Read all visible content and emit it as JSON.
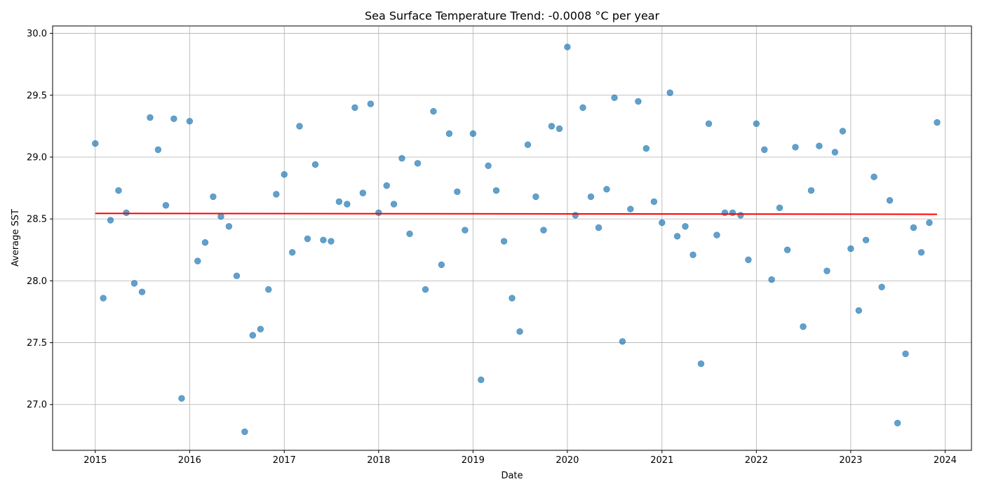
{
  "chart_data": {
    "type": "scatter",
    "title": "Sea Surface Temperature Trend: -0.0008 °C per year",
    "xlabel": "Date",
    "ylabel": "Average SST",
    "x_ticks": [
      "2015",
      "2016",
      "2017",
      "2018",
      "2019",
      "2020",
      "2021",
      "2022",
      "2023",
      "2024"
    ],
    "y_ticks": [
      "27.0",
      "27.5",
      "28.0",
      "28.5",
      "29.0",
      "29.5",
      "30.0"
    ],
    "xlim": [
      "2014-07-20",
      "2024-04-12"
    ],
    "ylim": [
      26.63,
      30.06
    ],
    "grid": true,
    "point_color": "#1f77b4",
    "trend_color": "#ff0000",
    "series": [
      {
        "values": [
          [
            "2015-01",
            29.11
          ],
          [
            "2015-02",
            27.86
          ],
          [
            "2015-03",
            28.49
          ],
          [
            "2015-04",
            28.73
          ],
          [
            "2015-05",
            28.55
          ],
          [
            "2015-06",
            27.98
          ],
          [
            "2015-07",
            27.91
          ],
          [
            "2015-08",
            29.32
          ],
          [
            "2015-09",
            29.06
          ],
          [
            "2015-10",
            28.61
          ],
          [
            "2015-11",
            29.31
          ],
          [
            "2015-12",
            27.05
          ],
          [
            "2016-01",
            29.29
          ],
          [
            "2016-02",
            28.16
          ],
          [
            "2016-03",
            28.31
          ],
          [
            "2016-04",
            28.68
          ],
          [
            "2016-05",
            28.52
          ],
          [
            "2016-06",
            28.44
          ],
          [
            "2016-07",
            28.04
          ],
          [
            "2016-08",
            26.78
          ],
          [
            "2016-09",
            27.56
          ],
          [
            "2016-10",
            27.61
          ],
          [
            "2016-11",
            27.93
          ],
          [
            "2016-12",
            28.7
          ],
          [
            "2017-01",
            28.86
          ],
          [
            "2017-02",
            28.23
          ],
          [
            "2017-03",
            29.25
          ],
          [
            "2017-04",
            28.34
          ],
          [
            "2017-05",
            28.94
          ],
          [
            "2017-06",
            28.33
          ],
          [
            "2017-07",
            28.32
          ],
          [
            "2017-08",
            28.64
          ],
          [
            "2017-09",
            28.62
          ],
          [
            "2017-10",
            29.4
          ],
          [
            "2017-11",
            28.71
          ],
          [
            "2017-12",
            29.43
          ],
          [
            "2018-01",
            28.55
          ],
          [
            "2018-02",
            28.77
          ],
          [
            "2018-03",
            28.62
          ],
          [
            "2018-04",
            28.99
          ],
          [
            "2018-05",
            28.38
          ],
          [
            "2018-06",
            28.95
          ],
          [
            "2018-07",
            27.93
          ],
          [
            "2018-08",
            29.37
          ],
          [
            "2018-09",
            28.13
          ],
          [
            "2018-10",
            29.19
          ],
          [
            "2018-11",
            28.72
          ],
          [
            "2018-12",
            28.41
          ],
          [
            "2019-01",
            29.19
          ],
          [
            "2019-02",
            27.2
          ],
          [
            "2019-03",
            28.93
          ],
          [
            "2019-04",
            28.73
          ],
          [
            "2019-05",
            28.32
          ],
          [
            "2019-06",
            27.86
          ],
          [
            "2019-07",
            27.59
          ],
          [
            "2019-08",
            29.1
          ],
          [
            "2019-09",
            28.68
          ],
          [
            "2019-10",
            28.41
          ],
          [
            "2019-11",
            29.25
          ],
          [
            "2019-12",
            29.23
          ],
          [
            "2020-01",
            29.89
          ],
          [
            "2020-02",
            28.53
          ],
          [
            "2020-03",
            29.4
          ],
          [
            "2020-04",
            28.68
          ],
          [
            "2020-05",
            28.43
          ],
          [
            "2020-06",
            28.74
          ],
          [
            "2020-07",
            29.48
          ],
          [
            "2020-08",
            27.51
          ],
          [
            "2020-09",
            28.58
          ],
          [
            "2020-10",
            29.45
          ],
          [
            "2020-11",
            29.07
          ],
          [
            "2020-12",
            28.64
          ],
          [
            "2021-01",
            28.47
          ],
          [
            "2021-02",
            29.52
          ],
          [
            "2021-03",
            28.36
          ],
          [
            "2021-04",
            28.44
          ],
          [
            "2021-05",
            28.21
          ],
          [
            "2021-06",
            27.33
          ],
          [
            "2021-07",
            29.27
          ],
          [
            "2021-08",
            28.37
          ],
          [
            "2021-09",
            28.55
          ],
          [
            "2021-10",
            28.55
          ],
          [
            "2021-11",
            28.53
          ],
          [
            "2021-12",
            28.17
          ],
          [
            "2022-01",
            29.27
          ],
          [
            "2022-02",
            29.06
          ],
          [
            "2022-03",
            28.01
          ],
          [
            "2022-04",
            28.59
          ],
          [
            "2022-05",
            28.25
          ],
          [
            "2022-06",
            29.08
          ],
          [
            "2022-07",
            27.63
          ],
          [
            "2022-08",
            28.73
          ],
          [
            "2022-09",
            29.09
          ],
          [
            "2022-10",
            28.08
          ],
          [
            "2022-11",
            29.04
          ],
          [
            "2022-12",
            29.21
          ],
          [
            "2023-01",
            28.26
          ],
          [
            "2023-02",
            27.76
          ],
          [
            "2023-03",
            28.33
          ],
          [
            "2023-04",
            28.84
          ],
          [
            "2023-05",
            27.95
          ],
          [
            "2023-06",
            28.65
          ],
          [
            "2023-07",
            26.85
          ],
          [
            "2023-08",
            27.41
          ],
          [
            "2023-09",
            28.43
          ],
          [
            "2023-10",
            28.23
          ],
          [
            "2023-11",
            28.47
          ],
          [
            "2023-12",
            29.28
          ]
        ]
      }
    ],
    "trend_line": {
      "from": [
        "2015-01",
        28.545
      ],
      "to": [
        "2023-12",
        28.538
      ]
    }
  }
}
